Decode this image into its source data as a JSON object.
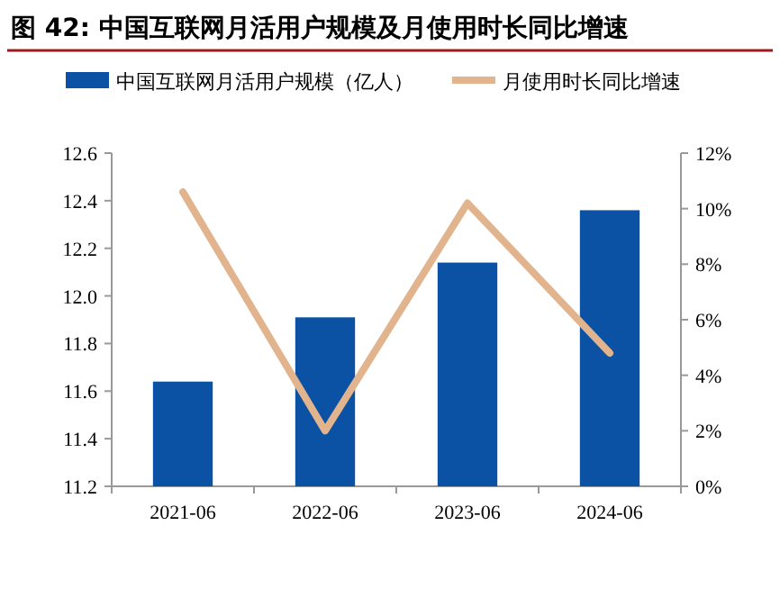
{
  "chart_data": {
    "type": "bar",
    "title": "图 42: 中国互联网月活用户规模及月使用时长同比增速",
    "categories": [
      "2021-06",
      "2022-06",
      "2023-06",
      "2024-06"
    ],
    "series": [
      {
        "name": "中国互联网月活用户规模（亿人）",
        "color": "#0b52a5",
        "values": [
          11.64,
          11.91,
          12.14,
          12.36
        ]
      },
      {
        "name": "月使用时长同比增速",
        "type": "line",
        "axis": "y2",
        "color": "#e2b48e",
        "values": [
          10.6,
          2.0,
          10.2,
          4.8
        ]
      }
    ],
    "ylim": [
      11.2,
      12.6
    ],
    "yticks": [
      11.2,
      11.4,
      11.6,
      11.8,
      {
        "value": 12,
        "label": "12.0"
      },
      12.2,
      12.4,
      12.6
    ],
    "y2lim": [
      0,
      12
    ],
    "y2ticks": [
      {
        "value": 0,
        "label": "0%"
      },
      {
        "value": 2,
        "label": "2%"
      },
      {
        "value": 4,
        "label": "4%"
      },
      {
        "value": 6,
        "label": "6%"
      },
      {
        "value": 8,
        "label": "8%"
      },
      {
        "value": 10,
        "label": "10%"
      },
      {
        "value": 12,
        "label": "12%"
      }
    ],
    "legend": "top",
    "grid": false
  }
}
